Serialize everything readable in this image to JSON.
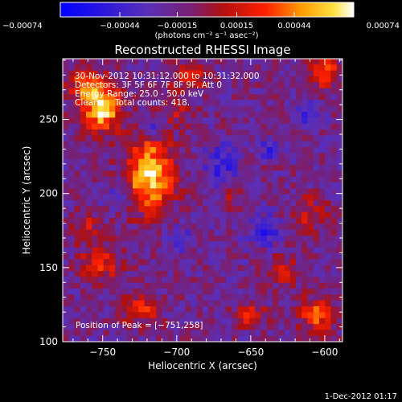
{
  "chart_data": {
    "type": "heatmap",
    "title": "Reconstructed RHESSI Image",
    "xlabel": "Heliocentric X (arcsec)",
    "ylabel": "Heliocentric Y (arcsec)",
    "xlim": [
      -777,
      -588
    ],
    "ylim": [
      100,
      291
    ],
    "x_ticks": [
      -750,
      -700,
      -650,
      -600
    ],
    "y_ticks": [
      100,
      150,
      200,
      250
    ],
    "colorbar": {
      "range": [
        -0.00074,
        0.00074
      ],
      "tick_values": [
        -0.00074,
        -0.00044,
        -0.00015,
        0.00015,
        0.00044,
        0.00074
      ],
      "tick_labels": [
        "−0.00074",
        "−0.00044",
        "−0.00015",
        "0.00015",
        "0.00044",
        "0.00074"
      ],
      "unit_label": "(photons cm⁻² s⁻¹ asec⁻²)",
      "colors": [
        "#0000ff",
        "#5a2fb8",
        "#7a1f70",
        "#b01010",
        "#ff2000",
        "#ff9a00",
        "#ffe040",
        "#ffffff"
      ]
    },
    "annotations": [
      "30-Nov-2012 10:31:12.000 to 10:31:32.000",
      "Detectors: 3F 5F 6F 7F 8F 9F, Att 0",
      "Energy Range: 25.0 - 50.0 keV",
      "Clean.     Total counts: 418."
    ],
    "peak_label": "Position of Peak = [−751,258]",
    "sources": [
      {
        "x": -751,
        "y": 258,
        "sx": 9,
        "sy": 11,
        "amp": 0.00085
      },
      {
        "x": -718,
        "y": 213,
        "sx": 11,
        "sy": 17,
        "amp": 0.00082
      },
      {
        "x": -763,
        "y": 274,
        "sx": 9,
        "sy": 7,
        "amp": 0.0004
      },
      {
        "x": -693,
        "y": 278,
        "sx": 10,
        "sy": 7,
        "amp": 0.00034
      },
      {
        "x": -600,
        "y": 282,
        "sx": 7,
        "sy": 8,
        "amp": 0.00048
      },
      {
        "x": -700,
        "y": 254,
        "sx": 8,
        "sy": 6,
        "amp": 0.00024
      },
      {
        "x": -610,
        "y": 186,
        "sx": 8,
        "sy": 9,
        "amp": 0.0003
      },
      {
        "x": -628,
        "y": 148,
        "sx": 8,
        "sy": 7,
        "amp": 0.0003
      },
      {
        "x": -752,
        "y": 152,
        "sx": 10,
        "sy": 9,
        "amp": 0.00036
      },
      {
        "x": -762,
        "y": 178,
        "sx": 7,
        "sy": 7,
        "amp": 0.00028
      },
      {
        "x": -725,
        "y": 122,
        "sx": 9,
        "sy": 7,
        "amp": 0.0004
      },
      {
        "x": -605,
        "y": 118,
        "sx": 9,
        "sy": 8,
        "amp": 0.00048
      },
      {
        "x": -650,
        "y": 118,
        "sx": 7,
        "sy": 6,
        "amp": 0.00036
      },
      {
        "x": -662,
        "y": 198,
        "sx": 6,
        "sy": 6,
        "amp": 0.0002
      },
      {
        "x": -715,
        "y": 244,
        "sx": 5,
        "sy": 5,
        "amp": -0.0004
      },
      {
        "x": -740,
        "y": 198,
        "sx": 5,
        "sy": 5,
        "amp": -0.00034
      },
      {
        "x": -670,
        "y": 218,
        "sx": 8,
        "sy": 10,
        "amp": -0.0003
      },
      {
        "x": -640,
        "y": 175,
        "sx": 7,
        "sy": 7,
        "amp": -0.00032
      },
      {
        "x": -700,
        "y": 170,
        "sx": 6,
        "sy": 6,
        "amp": -0.00026
      },
      {
        "x": -637,
        "y": 230,
        "sx": 5,
        "sy": 5,
        "amp": -0.00028
      },
      {
        "x": -612,
        "y": 252,
        "sx": 6,
        "sy": 6,
        "amp": -0.00024
      }
    ],
    "base_level": -0.00016,
    "noise_amplitude": 0.00016
  },
  "footer": {
    "date": "1-Dec-2012 01:17"
  }
}
